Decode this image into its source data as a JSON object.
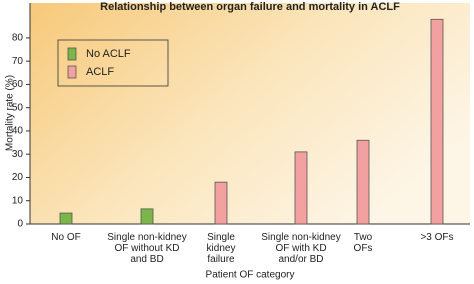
{
  "chart_data": {
    "type": "bar",
    "title": "Relationship between organ failure and mortality in ACLF",
    "y_label": "Mortality rate (%)",
    "x_label": "Patient OF category",
    "categories": [
      "No OF",
      "Single non-kidney\nOF without KD\nand BD",
      "Single\nkidney\nfailure",
      "Single non-kidney\nOF with KD\nand/or BD",
      "Two\nOFs",
      ">3 OFs"
    ],
    "series": [
      {
        "name": "No ACLF",
        "color": "#7ab648",
        "values": [
          4.7,
          6.5,
          null,
          null,
          null,
          null
        ]
      },
      {
        "name": "ACLF",
        "color": "#f2a0a0",
        "values": [
          null,
          null,
          18,
          31,
          36,
          88
        ]
      }
    ],
    "ylim": [
      0,
      95
    ],
    "yticks": [
      0,
      10,
      20,
      30,
      40,
      50,
      60,
      70,
      80
    ],
    "legend": "top-left"
  }
}
